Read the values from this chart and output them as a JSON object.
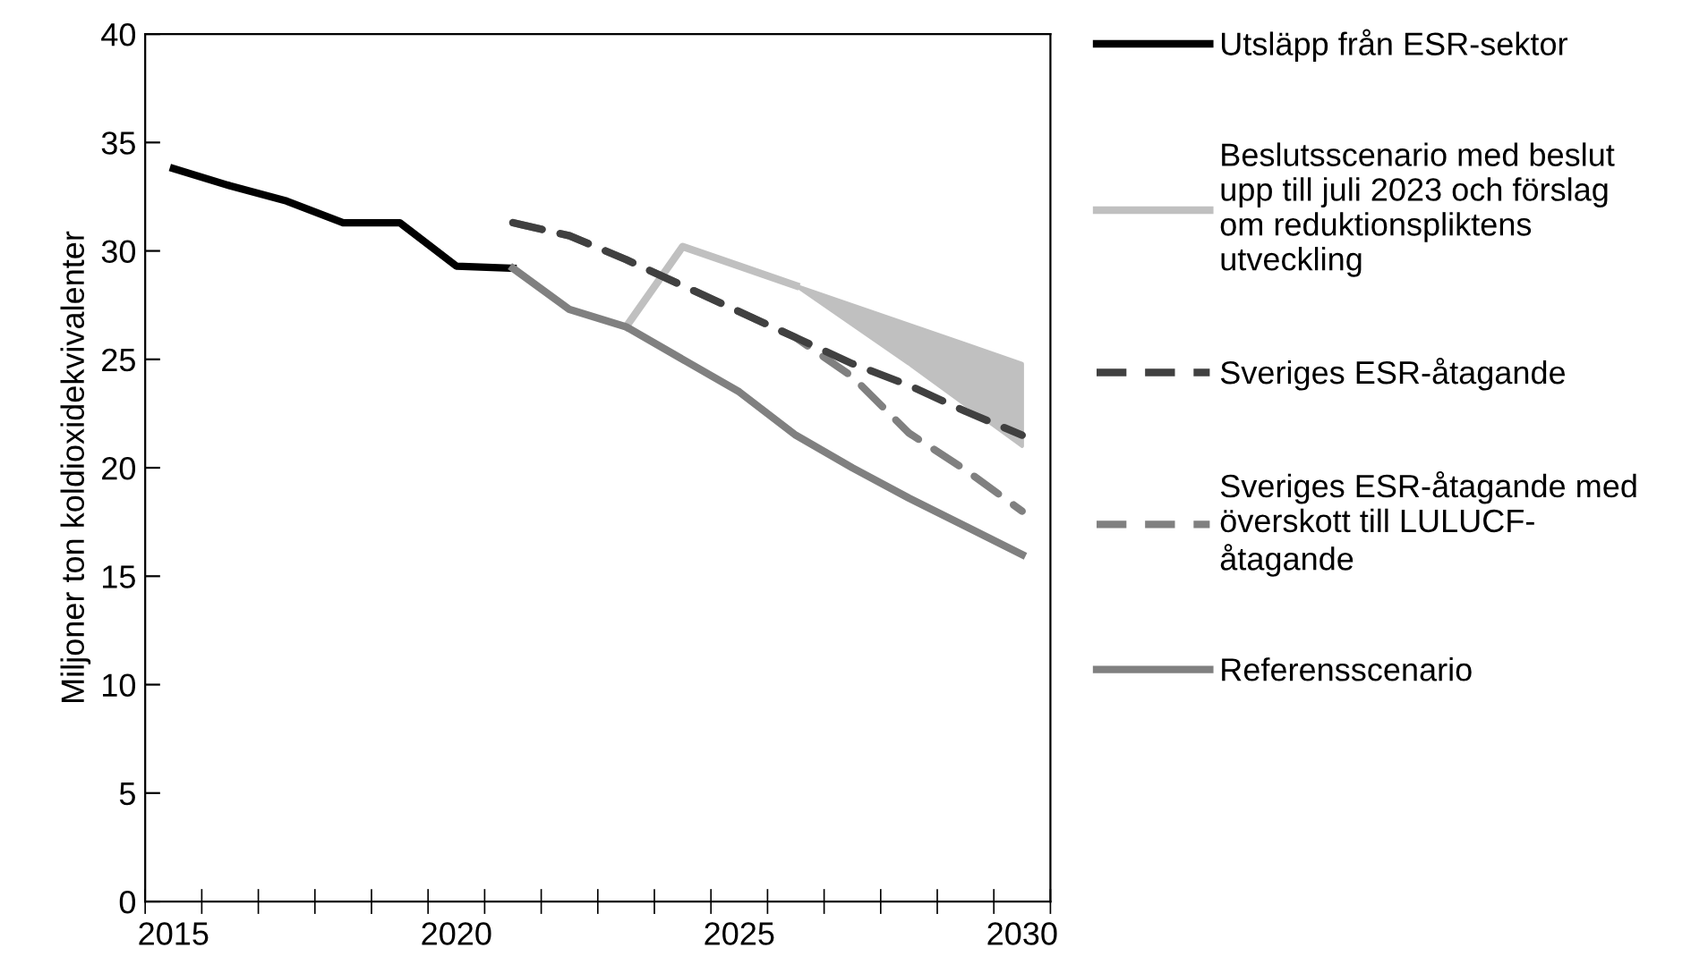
{
  "chart_data": {
    "type": "line",
    "ylabel": "Miljoner ton koldioxidekvivalenter",
    "categories": [
      "2015",
      null,
      null,
      null,
      null,
      "2020",
      null,
      null,
      null,
      null,
      "2025",
      null,
      null,
      null,
      null,
      "2030"
    ],
    "ylim": [
      0,
      40
    ],
    "yticks": [
      0,
      5,
      10,
      15,
      20,
      25,
      30,
      35,
      40
    ],
    "grid": false,
    "legend": "right",
    "marker": "none",
    "series": [
      {
        "name": "Utsläpp från ESR-sektor",
        "color": "#000000",
        "line_style": "solid",
        "values": [
          33.8,
          33.0,
          32.3,
          31.3,
          31.3,
          29.3,
          29.2,
          null,
          null,
          null,
          null,
          null,
          null,
          null,
          null,
          null
        ]
      },
      {
        "name": "Beslutsscenario med beslut\nupp till juli 2023 och förslag\nom reduktionspliktens\nutveckling",
        "color": "#c0c0c0",
        "line_style": "solid",
        "values": [
          null,
          null,
          null,
          null,
          null,
          null,
          null,
          null,
          26.5,
          30.2,
          29.3,
          28.4,
          null,
          null,
          null,
          null
        ],
        "lower": [
          null,
          null,
          null,
          null,
          null,
          null,
          null,
          null,
          null,
          null,
          null,
          28.4,
          26.6,
          24.8,
          22.9,
          21.0
        ],
        "upper": [
          null,
          null,
          null,
          null,
          null,
          null,
          null,
          null,
          null,
          null,
          null,
          28.4,
          27.5,
          26.6,
          25.7,
          24.8
        ]
      },
      {
        "name": "Sveriges ESR-åtagande",
        "color": "#404040",
        "line_style": "dashed",
        "values": [
          null,
          null,
          null,
          null,
          null,
          null,
          31.3,
          30.7,
          29.6,
          28.4,
          27.2,
          26.0,
          24.8,
          23.8,
          22.6,
          21.5
        ]
      },
      {
        "name": "Sveriges ESR-åtagande med\növerskott till LULUCF-\nåtagande",
        "color": "#808080",
        "line_style": "dashed",
        "values": [
          null,
          null,
          null,
          null,
          null,
          null,
          31.3,
          30.7,
          29.6,
          28.4,
          27.2,
          26.0,
          24.2,
          21.6,
          19.9,
          18.0
        ]
      },
      {
        "name": "Referensscenario",
        "color": "#808080",
        "line_style": "solid",
        "values": [
          null,
          null,
          null,
          null,
          null,
          null,
          29.2,
          27.3,
          26.5,
          25.0,
          23.5,
          21.5,
          20.0,
          18.6,
          17.3,
          16.0
        ]
      }
    ]
  }
}
